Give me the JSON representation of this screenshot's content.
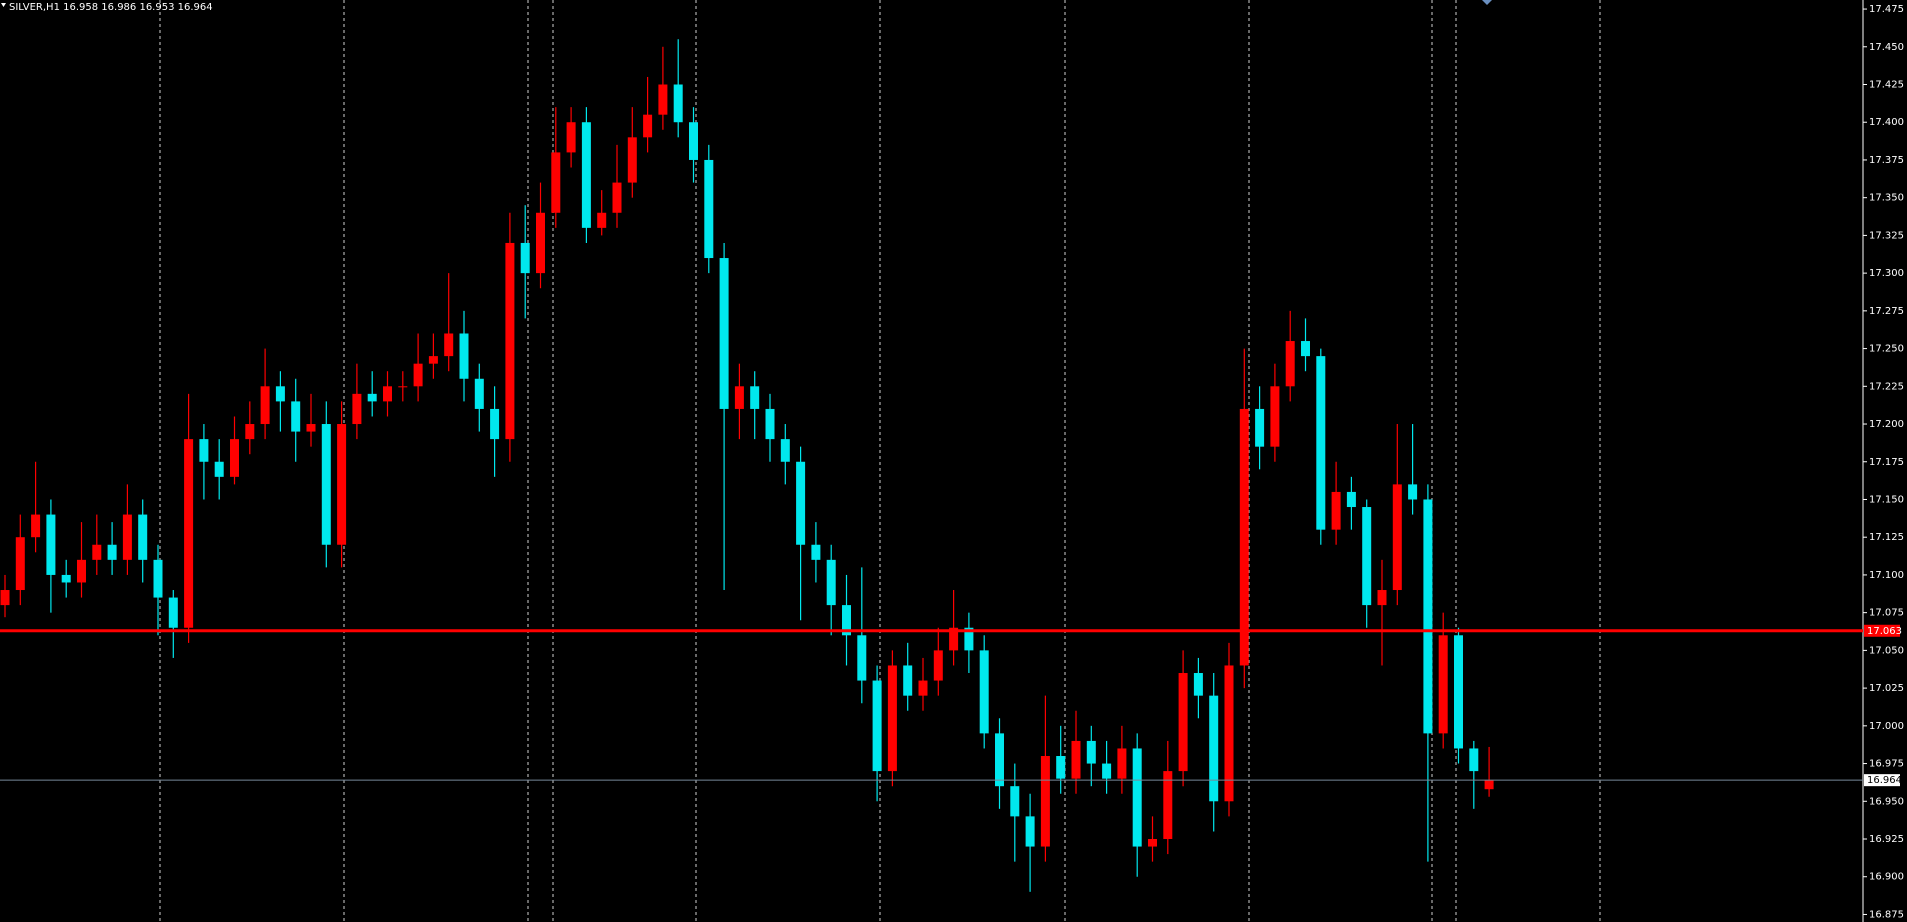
{
  "chart_data": {
    "type": "candlestick",
    "title": "SILVER,H1  16.958 16.986 16.953 16.964",
    "open": [
      17.08,
      17.09,
      17.125,
      17.14,
      17.1,
      17.095,
      17.11,
      17.12,
      17.11,
      17.14,
      17.11,
      17.085,
      17.065,
      17.19,
      17.175,
      17.165,
      17.19,
      17.2,
      17.225,
      17.215,
      17.195,
      17.2,
      17.12,
      17.2,
      17.22,
      17.215,
      17.225,
      17.225,
      17.24,
      17.245,
      17.26,
      17.23,
      17.21,
      17.19,
      17.32,
      17.3,
      17.34,
      17.38,
      17.4,
      17.33,
      17.34,
      17.36,
      17.39,
      17.405,
      17.425,
      17.4,
      17.375,
      17.31,
      17.21,
      17.225,
      17.21,
      17.19,
      17.175,
      17.12,
      17.11,
      17.08,
      17.06,
      17.03,
      16.97,
      17.04,
      17.02,
      17.03,
      17.05,
      17.065,
      17.05,
      16.995,
      16.96,
      16.94,
      16.92,
      16.98,
      16.965,
      16.99,
      16.975,
      16.965,
      16.985,
      16.92,
      16.925,
      16.97,
      17.035,
      17.02,
      16.95,
      17.04,
      17.21,
      17.185,
      17.225,
      17.255,
      17.245,
      17.13,
      17.155,
      17.145,
      17.08,
      17.09,
      17.16,
      17.15,
      16.995,
      17.06,
      16.985,
      16.958
    ],
    "high": [
      17.1,
      17.14,
      17.175,
      17.15,
      17.11,
      17.135,
      17.14,
      17.135,
      17.16,
      17.15,
      17.12,
      17.09,
      17.22,
      17.2,
      17.19,
      17.205,
      17.215,
      17.25,
      17.235,
      17.23,
      17.22,
      17.215,
      17.215,
      17.24,
      17.235,
      17.235,
      17.235,
      17.26,
      17.26,
      17.3,
      17.275,
      17.24,
      17.225,
      17.34,
      17.345,
      17.36,
      17.41,
      17.41,
      17.41,
      17.355,
      17.385,
      17.41,
      17.43,
      17.45,
      17.455,
      17.41,
      17.385,
      17.32,
      17.24,
      17.235,
      17.22,
      17.2,
      17.185,
      17.135,
      17.12,
      17.1,
      17.105,
      17.04,
      17.05,
      17.055,
      17.045,
      17.065,
      17.09,
      17.075,
      17.06,
      17.005,
      16.975,
      16.955,
      17.02,
      17.0,
      17.01,
      17.0,
      16.99,
      17.0,
      16.995,
      16.94,
      16.99,
      17.05,
      17.045,
      17.035,
      17.055,
      17.25,
      17.225,
      17.24,
      17.275,
      17.27,
      17.25,
      17.175,
      17.165,
      17.15,
      17.11,
      17.2,
      17.2,
      17.16,
      17.075,
      17.065,
      16.99,
      16.986
    ],
    "low": [
      17.072,
      17.08,
      17.115,
      17.075,
      17.085,
      17.085,
      17.1,
      17.1,
      17.1,
      17.095,
      17.06,
      17.045,
      17.055,
      17.15,
      17.15,
      17.16,
      17.18,
      17.19,
      17.195,
      17.175,
      17.185,
      17.105,
      17.105,
      17.19,
      17.205,
      17.205,
      17.215,
      17.215,
      17.23,
      17.235,
      17.215,
      17.195,
      17.165,
      17.175,
      17.27,
      17.29,
      17.33,
      17.37,
      17.32,
      17.325,
      17.33,
      17.35,
      17.38,
      17.395,
      17.39,
      17.36,
      17.3,
      17.09,
      17.19,
      17.19,
      17.175,
      17.16,
      17.07,
      17.095,
      17.06,
      17.04,
      17.015,
      16.95,
      16.96,
      17.01,
      17.01,
      17.02,
      17.04,
      17.035,
      16.985,
      16.945,
      16.91,
      16.89,
      16.91,
      16.955,
      16.955,
      16.96,
      16.955,
      16.955,
      16.9,
      16.91,
      16.915,
      16.96,
      17.005,
      16.93,
      16.94,
      17.025,
      17.17,
      17.175,
      17.215,
      17.235,
      17.12,
      17.12,
      17.13,
      17.065,
      17.04,
      17.08,
      17.14,
      16.91,
      16.985,
      16.975,
      16.945,
      16.953
    ],
    "close": [
      17.09,
      17.125,
      17.14,
      17.1,
      17.095,
      17.11,
      17.12,
      17.11,
      17.14,
      17.11,
      17.085,
      17.065,
      17.19,
      17.175,
      17.165,
      17.19,
      17.2,
      17.225,
      17.215,
      17.195,
      17.2,
      17.12,
      17.2,
      17.22,
      17.215,
      17.225,
      17.225,
      17.24,
      17.245,
      17.26,
      17.23,
      17.21,
      17.19,
      17.32,
      17.3,
      17.34,
      17.38,
      17.4,
      17.33,
      17.34,
      17.36,
      17.39,
      17.405,
      17.425,
      17.4,
      17.375,
      17.31,
      17.21,
      17.225,
      17.21,
      17.19,
      17.175,
      17.12,
      17.11,
      17.08,
      17.06,
      17.03,
      16.97,
      17.04,
      17.02,
      17.03,
      17.05,
      17.065,
      17.05,
      16.995,
      16.96,
      16.94,
      16.92,
      16.98,
      16.965,
      16.99,
      16.975,
      16.965,
      16.985,
      16.92,
      16.925,
      16.97,
      17.035,
      17.02,
      16.95,
      17.04,
      17.21,
      17.185,
      17.225,
      17.255,
      17.245,
      17.13,
      17.155,
      17.145,
      17.08,
      17.09,
      17.16,
      17.15,
      16.995,
      17.06,
      16.985,
      16.97,
      16.964
    ],
    "up_color": "#ff0000",
    "down_color": "#00e8ee",
    "ylim": [
      16.87,
      17.481
    ],
    "yticks": [
      16.875,
      {
        "value": 16.9,
        "label": "16.900"
      },
      16.925,
      {
        "value": 16.95,
        "label": "16.950"
      },
      16.975,
      {
        "value": 17,
        "label": "17.000"
      },
      17.025,
      {
        "value": 17.05,
        "label": "17.050"
      },
      17.075,
      {
        "value": 17.1,
        "label": "17.100"
      },
      17.125,
      {
        "value": 17.15,
        "label": "17.150"
      },
      17.175,
      {
        "value": 17.2,
        "label": "17.200"
      },
      17.225,
      {
        "value": 17.25,
        "label": "17.250"
      },
      17.275,
      {
        "value": 17.3,
        "label": "17.300"
      },
      17.325,
      {
        "value": 17.35,
        "label": "17.350"
      },
      17.375,
      {
        "value": 17.4,
        "label": "17.400"
      },
      17.425,
      {
        "value": 17.45,
        "label": "17.450"
      },
      17.475
    ],
    "hlines": [
      {
        "value": 17.063,
        "color": "#ff0000"
      },
      {
        "value": 16.964,
        "color": "#778899"
      }
    ]
  }
}
